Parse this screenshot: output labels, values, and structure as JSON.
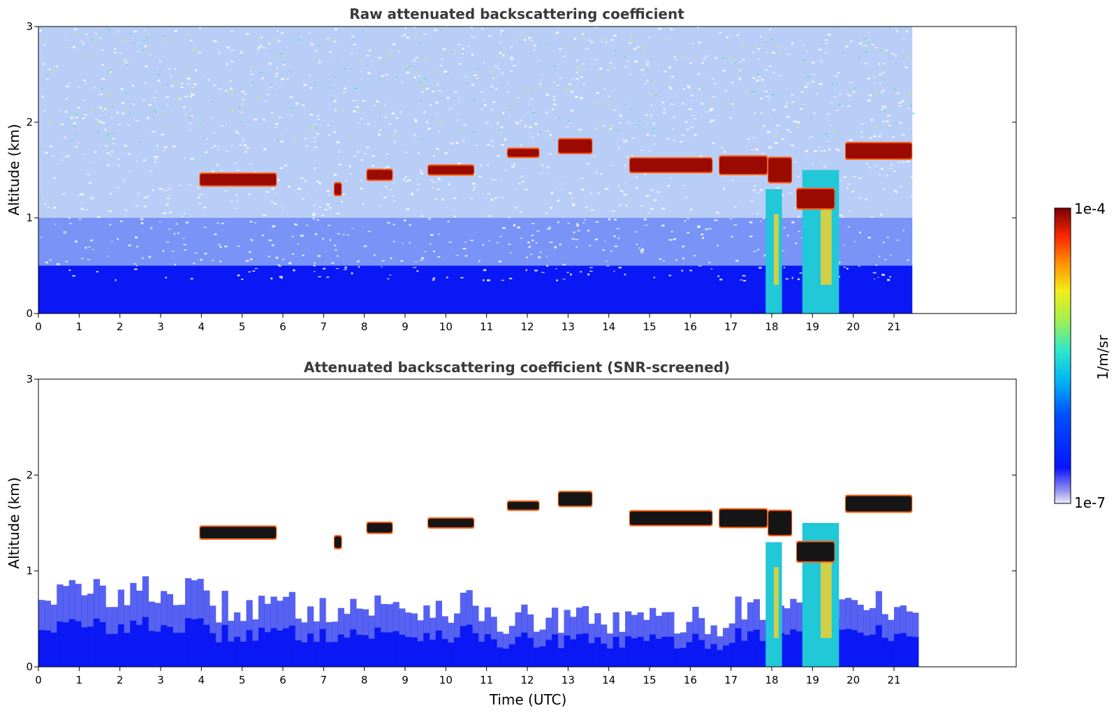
{
  "chart_data": [
    {
      "type": "heatmap",
      "title": "Raw attenuated backscattering coefficient",
      "xlabel": "",
      "ylabel": "Altitude (km)",
      "xlim": [
        0,
        24
      ],
      "ylim": [
        0,
        3
      ],
      "data_xmax": 21.45,
      "xticks": [
        "0",
        "1",
        "2",
        "3",
        "4",
        "5",
        "6",
        "7",
        "8",
        "9",
        "10",
        "11",
        "12",
        "13",
        "14",
        "15",
        "16",
        "17",
        "18",
        "19",
        "20",
        "21"
      ],
      "yticks": [
        "0",
        "1",
        "2",
        "3"
      ],
      "screened": false,
      "cloud_layers": [
        {
          "x0": 3.95,
          "x1": 5.85,
          "y": 1.4,
          "thick": 0.12
        },
        {
          "x0": 7.25,
          "x1": 7.45,
          "y": 1.3,
          "thick": 0.12
        },
        {
          "x0": 8.05,
          "x1": 8.7,
          "y": 1.45,
          "thick": 0.1
        },
        {
          "x0": 9.55,
          "x1": 10.7,
          "y": 1.5,
          "thick": 0.09
        },
        {
          "x0": 11.5,
          "x1": 12.3,
          "y": 1.68,
          "thick": 0.08
        },
        {
          "x0": 12.75,
          "x1": 13.6,
          "y": 1.75,
          "thick": 0.14
        },
        {
          "x0": 14.5,
          "x1": 16.55,
          "y": 1.55,
          "thick": 0.14
        },
        {
          "x0": 16.7,
          "x1": 17.9,
          "y": 1.55,
          "thick": 0.18
        },
        {
          "x0": 17.9,
          "x1": 18.5,
          "y": 1.5,
          "thick": 0.25
        },
        {
          "x0": 18.6,
          "x1": 19.55,
          "y": 1.2,
          "thick": 0.2
        },
        {
          "x0": 19.8,
          "x1": 21.45,
          "y": 1.7,
          "thick": 0.16
        }
      ],
      "precip_columns": [
        {
          "x0": 17.85,
          "x1": 18.25,
          "ytop": 1.3
        },
        {
          "x0": 18.75,
          "x1": 19.65,
          "ytop": 1.5
        }
      ]
    },
    {
      "type": "heatmap",
      "title": "Attenuated backscattering coefficient (SNR-screened)",
      "xlabel": "Time (UTC)",
      "ylabel": "Altitude (km)",
      "xlim": [
        0,
        24
      ],
      "ylim": [
        0,
        3
      ],
      "data_xmax": 21.45,
      "xticks": [
        "0",
        "1",
        "2",
        "3",
        "4",
        "5",
        "6",
        "7",
        "8",
        "9",
        "10",
        "11",
        "12",
        "13",
        "14",
        "15",
        "16",
        "17",
        "18",
        "19",
        "20",
        "21"
      ],
      "yticks": [
        "0",
        "1",
        "2",
        "3"
      ],
      "screened": true,
      "cloud_layers": [
        {
          "x0": 3.95,
          "x1": 5.85,
          "y": 1.4,
          "thick": 0.12
        },
        {
          "x0": 7.25,
          "x1": 7.45,
          "y": 1.3,
          "thick": 0.12
        },
        {
          "x0": 8.05,
          "x1": 8.7,
          "y": 1.45,
          "thick": 0.1
        },
        {
          "x0": 9.55,
          "x1": 10.7,
          "y": 1.5,
          "thick": 0.09
        },
        {
          "x0": 11.5,
          "x1": 12.3,
          "y": 1.68,
          "thick": 0.08
        },
        {
          "x0": 12.75,
          "x1": 13.6,
          "y": 1.75,
          "thick": 0.14
        },
        {
          "x0": 14.5,
          "x1": 16.55,
          "y": 1.55,
          "thick": 0.14
        },
        {
          "x0": 16.7,
          "x1": 17.9,
          "y": 1.55,
          "thick": 0.18
        },
        {
          "x0": 17.9,
          "x1": 18.5,
          "y": 1.5,
          "thick": 0.25
        },
        {
          "x0": 18.6,
          "x1": 19.55,
          "y": 1.2,
          "thick": 0.2
        },
        {
          "x0": 19.8,
          "x1": 21.45,
          "y": 1.7,
          "thick": 0.16
        }
      ],
      "precip_columns": [
        {
          "x0": 17.85,
          "x1": 18.25,
          "ytop": 1.3
        },
        {
          "x0": 18.75,
          "x1": 19.65,
          "ytop": 1.5
        }
      ]
    }
  ],
  "colorbar": {
    "label": "1/m/sr",
    "min_label": "1e-7",
    "max_label": "1e-4",
    "colors": [
      "#e8e8f8",
      "#9090f0",
      "#0010ff",
      "#0070ff",
      "#00d0f0",
      "#70f090",
      "#f0f020",
      "#ff8000",
      "#ff2000",
      "#8b0000"
    ]
  }
}
